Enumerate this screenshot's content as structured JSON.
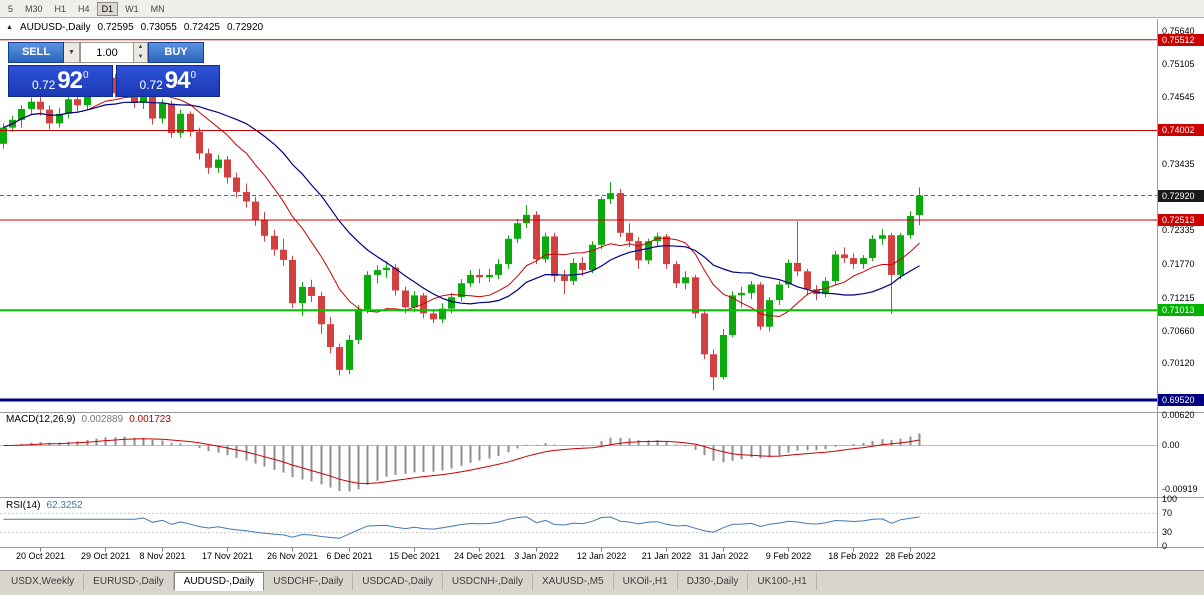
{
  "toolbar": {
    "timeframes": [
      "5",
      "M30",
      "H1",
      "H4",
      "D1",
      "W1",
      "MN"
    ],
    "active": "D1"
  },
  "header": {
    "symbol": "AUDUSD-,Daily",
    "open": "0.72595",
    "high": "0.73055",
    "low": "0.72425",
    "close": "0.72920"
  },
  "trade_panel": {
    "sell_label": "SELL",
    "buy_label": "BUY",
    "volume": "1.00",
    "sell_price": {
      "prefix": "0.72",
      "big": "92",
      "sup": "0"
    },
    "buy_price": {
      "prefix": "0.72",
      "big": "94",
      "sup": "0"
    }
  },
  "indicators": {
    "macd": {
      "label": "MACD(12,26,9)",
      "value_main": "0.002889",
      "value_signal": "0.001723",
      "axis_labels": [
        {
          "text": "0.00620",
          "value": 0.0062
        },
        {
          "text": "0.00",
          "value": 0
        },
        {
          "text": "-0.00919",
          "value": -0.00919
        }
      ]
    },
    "rsi": {
      "label": "RSI(14)",
      "value": "62.3252",
      "levels": [
        70,
        30
      ],
      "axis_labels": [
        {
          "text": "100",
          "value": 100
        },
        {
          "text": "70",
          "value": 70
        },
        {
          "text": "30",
          "value": 30
        },
        {
          "text": "0",
          "value": 0
        }
      ]
    }
  },
  "price_axis": {
    "ticks": [
      {
        "text": "0.75640",
        "value": 0.7564
      },
      {
        "text": "0.75105",
        "value": 0.75105
      },
      {
        "text": "0.74545",
        "value": 0.74545
      },
      {
        "text": "0.73435",
        "value": 0.73435
      },
      {
        "text": "0.72335",
        "value": 0.72335
      },
      {
        "text": "0.71770",
        "value": 0.7177
      },
      {
        "text": "0.71215",
        "value": 0.71215
      },
      {
        "text": "0.70660",
        "value": 0.7066
      },
      {
        "text": "0.70120",
        "value": 0.7012
      }
    ],
    "badges": [
      {
        "text": "0.75512",
        "value": 0.75512,
        "bg": "#cc0000"
      },
      {
        "text": "0.74002",
        "value": 0.74002,
        "bg": "#cc0000"
      },
      {
        "text": "0.72920",
        "value": 0.7292,
        "bg": "#1a1a1a"
      },
      {
        "text": "0.72513",
        "value": 0.72513,
        "bg": "#cc0000"
      },
      {
        "text": "0.71013",
        "value": 0.71013,
        "bg": "#00b200"
      },
      {
        "text": "0.69520",
        "value": 0.6952,
        "bg": "#000080"
      }
    ]
  },
  "hlines": [
    {
      "value": 0.75512,
      "color": "#cc0000",
      "width": 1
    },
    {
      "value": 0.74002,
      "color": "#cc0000",
      "width": 1
    },
    {
      "value": 0.72513,
      "color": "#cc0000",
      "width": 1
    },
    {
      "value": 0.71013,
      "color": "#00c400",
      "width": 2
    },
    {
      "value": 0.6952,
      "color": "#000080",
      "width": 3
    },
    {
      "value": 0.7292,
      "color": "#666666",
      "width": 1,
      "dashed": true
    }
  ],
  "time_axis": {
    "labels": [
      {
        "text": "20 Oct 2021",
        "bar": 4
      },
      {
        "text": "29 Oct 2021",
        "bar": 11
      },
      {
        "text": "8 Nov 2021",
        "bar": 17
      },
      {
        "text": "17 Nov 2021",
        "bar": 24
      },
      {
        "text": "26 Nov 2021",
        "bar": 31
      },
      {
        "text": "6 Dec 2021",
        "bar": 37
      },
      {
        "text": "15 Dec 2021",
        "bar": 44
      },
      {
        "text": "24 Dec 2021",
        "bar": 51
      },
      {
        "text": "3 Jan 2022",
        "bar": 57
      },
      {
        "text": "12 Jan 2022",
        "bar": 64
      },
      {
        "text": "21 Jan 2022",
        "bar": 71
      },
      {
        "text": "31 Jan 2022",
        "bar": 77
      },
      {
        "text": "9 Feb 2022",
        "bar": 84
      },
      {
        "text": "18 Feb 2022",
        "bar": 91
      },
      {
        "text": "28 Feb 2022",
        "bar": 97
      }
    ]
  },
  "chart_data": {
    "type": "candlestick",
    "title": "AUDUSD-,Daily",
    "symbol": "AUDUSD",
    "timeframe": "Daily",
    "price_range": {
      "max": 0.75856,
      "min": 0.6932
    },
    "overlays": [
      {
        "name": "ma-fast",
        "type": "sma",
        "period": 10,
        "color": "#cc0000"
      },
      {
        "name": "ma-slow",
        "type": "sma",
        "period": 20,
        "color": "#000080"
      }
    ],
    "macd": {
      "fast": 12,
      "slow": 26,
      "signal": 9,
      "range": {
        "max": 0.0068,
        "min": -0.0108
      }
    },
    "rsi": {
      "period": 14,
      "range": {
        "max": 100,
        "min": 0
      }
    },
    "candles": [
      [
        0.7378,
        0.7412,
        0.737,
        0.7405
      ],
      [
        0.7405,
        0.7425,
        0.7398,
        0.7418
      ],
      [
        0.7418,
        0.7442,
        0.7405,
        0.7436
      ],
      [
        0.7436,
        0.7455,
        0.7428,
        0.7448
      ],
      [
        0.7448,
        0.7458,
        0.7425,
        0.7435
      ],
      [
        0.7435,
        0.7442,
        0.7402,
        0.7412
      ],
      [
        0.7412,
        0.7438,
        0.7405,
        0.7428
      ],
      [
        0.7428,
        0.7462,
        0.742,
        0.7452
      ],
      [
        0.7452,
        0.7462,
        0.7432,
        0.7442
      ],
      [
        0.7442,
        0.7478,
        0.7435,
        0.7468
      ],
      [
        0.7468,
        0.7488,
        0.746,
        0.748
      ],
      [
        0.748,
        0.7495,
        0.747,
        0.7488
      ],
      [
        0.7488,
        0.7494,
        0.7455,
        0.7462
      ],
      [
        0.7462,
        0.749,
        0.7456,
        0.7484
      ],
      [
        0.7484,
        0.7492,
        0.7438,
        0.7446
      ],
      [
        0.7446,
        0.747,
        0.7436,
        0.7462
      ],
      [
        0.7462,
        0.7468,
        0.741,
        0.742
      ],
      [
        0.742,
        0.7452,
        0.7412,
        0.7445
      ],
      [
        0.7445,
        0.745,
        0.7388,
        0.7396
      ],
      [
        0.7396,
        0.7435,
        0.7388,
        0.7428
      ],
      [
        0.7428,
        0.7432,
        0.739,
        0.7398
      ],
      [
        0.7398,
        0.7405,
        0.7352,
        0.7362
      ],
      [
        0.7362,
        0.737,
        0.7328,
        0.7338
      ],
      [
        0.7338,
        0.736,
        0.733,
        0.7352
      ],
      [
        0.7352,
        0.7358,
        0.7312,
        0.7322
      ],
      [
        0.7322,
        0.733,
        0.7288,
        0.7298
      ],
      [
        0.7298,
        0.7312,
        0.7272,
        0.7282
      ],
      [
        0.7282,
        0.729,
        0.7242,
        0.7252
      ],
      [
        0.7252,
        0.7265,
        0.7215,
        0.7225
      ],
      [
        0.7225,
        0.7235,
        0.7192,
        0.7202
      ],
      [
        0.7202,
        0.722,
        0.7175,
        0.7185
      ],
      [
        0.7185,
        0.7192,
        0.7105,
        0.7113
      ],
      [
        0.7113,
        0.7148,
        0.7092,
        0.714
      ],
      [
        0.714,
        0.7152,
        0.7115,
        0.7125
      ],
      [
        0.7125,
        0.7132,
        0.7062,
        0.7078
      ],
      [
        0.7078,
        0.709,
        0.703,
        0.704
      ],
      [
        0.704,
        0.7046,
        0.6993,
        0.7002
      ],
      [
        0.7002,
        0.706,
        0.6995,
        0.7052
      ],
      [
        0.7052,
        0.711,
        0.7045,
        0.7103
      ],
      [
        0.7103,
        0.7166,
        0.7096,
        0.716
      ],
      [
        0.716,
        0.7176,
        0.7146,
        0.7168
      ],
      [
        0.7168,
        0.7183,
        0.7155,
        0.7172
      ],
      [
        0.7172,
        0.7178,
        0.7126,
        0.7134
      ],
      [
        0.7134,
        0.714,
        0.7096,
        0.7106
      ],
      [
        0.7106,
        0.7133,
        0.7098,
        0.7126
      ],
      [
        0.7126,
        0.713,
        0.7088,
        0.7096
      ],
      [
        0.7096,
        0.7103,
        0.708,
        0.7086
      ],
      [
        0.7086,
        0.7113,
        0.708,
        0.7104
      ],
      [
        0.7104,
        0.713,
        0.7096,
        0.7123
      ],
      [
        0.7123,
        0.7153,
        0.7116,
        0.7146
      ],
      [
        0.7146,
        0.7168,
        0.714,
        0.716
      ],
      [
        0.716,
        0.717,
        0.7146,
        0.7156
      ],
      [
        0.7156,
        0.717,
        0.7148,
        0.716
      ],
      [
        0.716,
        0.7186,
        0.7153,
        0.7178
      ],
      [
        0.7178,
        0.7226,
        0.717,
        0.722
      ],
      [
        0.722,
        0.7253,
        0.7213,
        0.7246
      ],
      [
        0.7246,
        0.7276,
        0.7238,
        0.726
      ],
      [
        0.726,
        0.7266,
        0.7178,
        0.7186
      ],
      [
        0.7186,
        0.723,
        0.718,
        0.7224
      ],
      [
        0.7224,
        0.723,
        0.7148,
        0.7158
      ],
      [
        0.7158,
        0.7168,
        0.7128,
        0.715
      ],
      [
        0.715,
        0.7188,
        0.7143,
        0.718
      ],
      [
        0.718,
        0.719,
        0.7158,
        0.7168
      ],
      [
        0.7168,
        0.7216,
        0.7163,
        0.721
      ],
      [
        0.721,
        0.729,
        0.7203,
        0.7286
      ],
      [
        0.7286,
        0.7314,
        0.7278,
        0.7296
      ],
      [
        0.7296,
        0.7303,
        0.7223,
        0.723
      ],
      [
        0.723,
        0.7246,
        0.7206,
        0.7216
      ],
      [
        0.7216,
        0.7223,
        0.717,
        0.7184
      ],
      [
        0.7184,
        0.722,
        0.7178,
        0.7216
      ],
      [
        0.7216,
        0.723,
        0.7206,
        0.7224
      ],
      [
        0.7224,
        0.7228,
        0.717,
        0.7178
      ],
      [
        0.7178,
        0.7183,
        0.7138,
        0.7146
      ],
      [
        0.7146,
        0.7166,
        0.7136,
        0.7156
      ],
      [
        0.7156,
        0.716,
        0.7088,
        0.7096
      ],
      [
        0.7096,
        0.7103,
        0.702,
        0.7028
      ],
      [
        0.7028,
        0.7036,
        0.6968,
        0.699
      ],
      [
        0.699,
        0.707,
        0.6986,
        0.706
      ],
      [
        0.706,
        0.7133,
        0.7056,
        0.7126
      ],
      [
        0.7126,
        0.714,
        0.7106,
        0.713
      ],
      [
        0.713,
        0.715,
        0.712,
        0.7144
      ],
      [
        0.7144,
        0.7148,
        0.7068,
        0.7074
      ],
      [
        0.7074,
        0.7123,
        0.7066,
        0.7118
      ],
      [
        0.7118,
        0.715,
        0.711,
        0.7144
      ],
      [
        0.7144,
        0.7186,
        0.7138,
        0.718
      ],
      [
        0.718,
        0.7249,
        0.7158,
        0.7166
      ],
      [
        0.7166,
        0.717,
        0.7126,
        0.7136
      ],
      [
        0.7136,
        0.7143,
        0.7118,
        0.7128
      ],
      [
        0.7128,
        0.7156,
        0.7123,
        0.715
      ],
      [
        0.715,
        0.72,
        0.7143,
        0.7194
      ],
      [
        0.7194,
        0.7206,
        0.718,
        0.7188
      ],
      [
        0.7188,
        0.7196,
        0.717,
        0.7178
      ],
      [
        0.7178,
        0.7193,
        0.717,
        0.7188
      ],
      [
        0.7188,
        0.7226,
        0.7183,
        0.722
      ],
      [
        0.722,
        0.7236,
        0.721,
        0.7226
      ],
      [
        0.7226,
        0.723,
        0.7095,
        0.716
      ],
      [
        0.716,
        0.723,
        0.7153,
        0.7226
      ],
      [
        0.7226,
        0.7266,
        0.722,
        0.7258
      ],
      [
        0.72595,
        0.73055,
        0.72425,
        0.7292
      ]
    ]
  },
  "tabs": [
    {
      "label": "USDX,Weekly",
      "active": false
    },
    {
      "label": "EURUSD-,Daily",
      "active": false
    },
    {
      "label": "AUDUSD-,Daily",
      "active": true
    },
    {
      "label": "USDCHF-,Daily",
      "active": false
    },
    {
      "label": "USDCAD-,Daily",
      "active": false
    },
    {
      "label": "USDCNH-,Daily",
      "active": false
    },
    {
      "label": "XAUUSD-,M5",
      "active": false
    },
    {
      "label": "UKOil-,H1",
      "active": false
    },
    {
      "label": "DJ30-,Daily",
      "active": false
    },
    {
      "label": "UK100-,H1",
      "active": false
    }
  ],
  "colors": {
    "bull": "#0caa0c",
    "bear": "#d24040",
    "ma_fast": "#cc0000",
    "ma_slow": "#000080",
    "macd_hist": "#8f8f8f",
    "macd_signal": "#cc0000",
    "rsi_line": "#4178b0"
  }
}
